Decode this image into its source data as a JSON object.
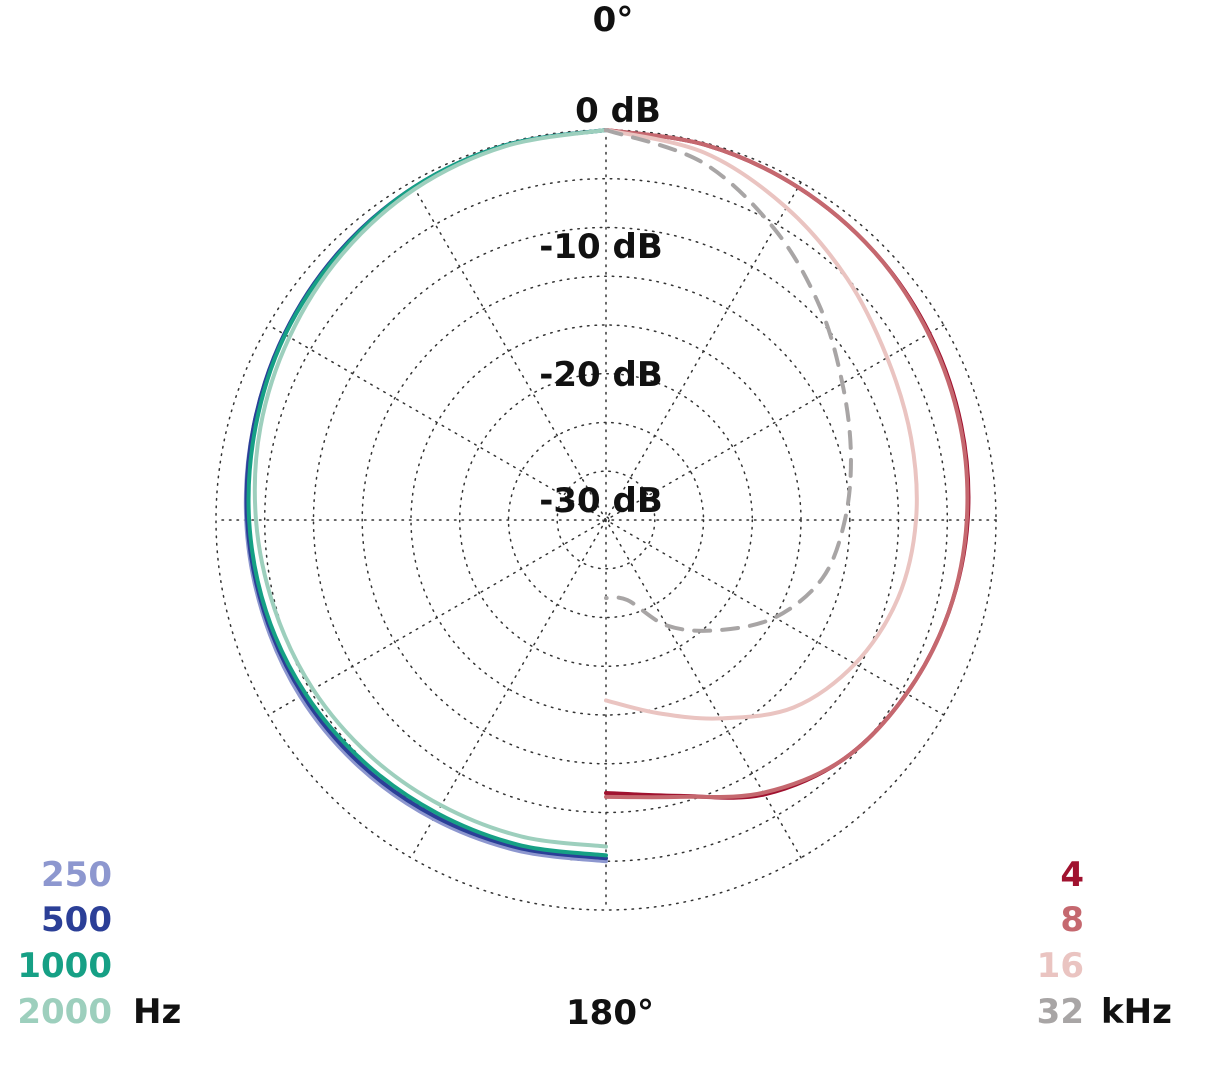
{
  "chart_data": {
    "type": "polar",
    "title": "",
    "angle_labels": {
      "top": "0°",
      "bottom": "180°"
    },
    "radial_labels": [
      "0 dB",
      "-10 dB",
      "-20 dB",
      "-30 dB"
    ],
    "radial_range_db": [
      -40,
      0
    ],
    "radial_ticks_db": [
      0,
      -5,
      -10,
      -15,
      -20,
      -25,
      -30,
      -35
    ],
    "grid": true,
    "symmetric_halves": true,
    "angles_deg": [
      0,
      15,
      30,
      45,
      60,
      75,
      90,
      105,
      120,
      135,
      150,
      165,
      180
    ],
    "legend_left": {
      "unit": "Hz",
      "entries": [
        {
          "label": "250",
          "color": "#8d97cf"
        },
        {
          "label": "500",
          "color": "#2b3f97"
        },
        {
          "label": "1000",
          "color": "#16a085"
        },
        {
          "label": "2000",
          "color": "#9dcfbd"
        }
      ]
    },
    "legend_right": {
      "unit": "kHz",
      "entries": [
        {
          "label": "4",
          "color": "#a0122f"
        },
        {
          "label": "8",
          "color": "#c5686f"
        },
        {
          "label": "16",
          "color": "#eac4c1"
        },
        {
          "label": "32",
          "color": "#a8a5a5"
        }
      ]
    },
    "series": [
      {
        "name": "250",
        "side": "left",
        "color": "#8d97cf",
        "dashed": false,
        "values_db": [
          0,
          -0.2,
          -0.6,
          -1.2,
          -1.9,
          -2.6,
          -3.1,
          -3.5,
          -3.8,
          -4.2,
          -4.6,
          -4.9,
          -5.0
        ]
      },
      {
        "name": "500",
        "side": "left",
        "color": "#2b3f97",
        "dashed": false,
        "values_db": [
          0,
          -0.2,
          -0.6,
          -1.2,
          -1.9,
          -2.6,
          -3.2,
          -3.7,
          -4.1,
          -4.5,
          -4.9,
          -5.2,
          -5.3
        ]
      },
      {
        "name": "1000",
        "side": "left",
        "color": "#16a085",
        "dashed": false,
        "values_db": [
          0,
          -0.2,
          -0.6,
          -1.3,
          -2.0,
          -2.8,
          -3.4,
          -3.9,
          -4.4,
          -4.9,
          -5.3,
          -5.5,
          -5.6
        ]
      },
      {
        "name": "2000",
        "side": "left",
        "color": "#9dcfbd",
        "dashed": false,
        "values_db": [
          0,
          -0.3,
          -0.8,
          -1.6,
          -2.5,
          -3.3,
          -4.1,
          -4.8,
          -5.3,
          -5.8,
          -6.2,
          -6.4,
          -6.5
        ]
      },
      {
        "name": "4",
        "side": "right",
        "color": "#a0122f",
        "dashed": false,
        "values_db": [
          0,
          -0.2,
          -0.6,
          -1.1,
          -1.7,
          -2.3,
          -2.9,
          -3.6,
          -4.4,
          -5.4,
          -7.5,
          -10.7,
          -12.0
        ]
      },
      {
        "name": "8",
        "side": "right",
        "color": "#c5686f",
        "dashed": false,
        "values_db": [
          0,
          -0.2,
          -0.6,
          -1.1,
          -1.8,
          -2.4,
          -3.0,
          -3.6,
          -4.4,
          -5.4,
          -7.7,
          -10.6,
          -11.6
        ]
      },
      {
        "name": "16",
        "side": "right",
        "color": "#eac4c1",
        "dashed": false,
        "values_db": [
          0,
          -1.0,
          -3.0,
          -5.0,
          -6.7,
          -7.6,
          -8.2,
          -9.0,
          -10.5,
          -12.8,
          -16.5,
          -19.5,
          -21.5
        ]
      },
      {
        "name": "32",
        "side": "right",
        "color": "#a8a5a5",
        "dashed": true,
        "values_db": [
          0,
          -2.0,
          -5.5,
          -9.0,
          -12.0,
          -14.0,
          -15.5,
          -17.0,
          -20.0,
          -24.0,
          -27.5,
          -31.5,
          -32.0
        ]
      }
    ]
  }
}
